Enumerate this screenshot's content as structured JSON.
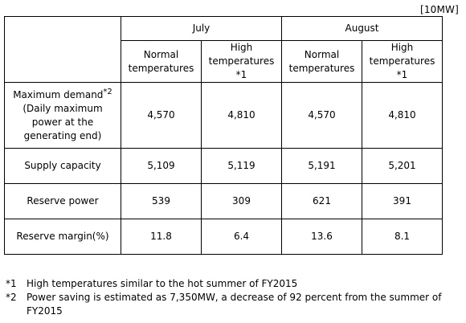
{
  "unit": "[10MW]",
  "months": [
    "July",
    "August"
  ],
  "conditions": [
    [
      "Normal",
      "temperatures"
    ],
    [
      "High",
      "temperatures",
      "*1"
    ],
    [
      "Normal",
      "temperatures"
    ],
    [
      "High",
      "temperatures",
      "*1"
    ]
  ],
  "rows": [
    {
      "label_lines": [
        "Maximum demand",
        "(Daily maximum",
        "power at the",
        "generating  end)"
      ],
      "label_sup": "*2",
      "values": [
        "4,570",
        "4,810",
        "4,570",
        "4,810"
      ]
    },
    {
      "label_lines": [
        "Supply capacity"
      ],
      "values": [
        "5,109",
        "5,119",
        "5,191",
        "5,201"
      ]
    },
    {
      "label_lines": [
        "Reserve power"
      ],
      "values": [
        "539",
        "309",
        "621",
        "391"
      ]
    },
    {
      "label_lines": [
        "Reserve margin(%)"
      ],
      "values": [
        "11.8",
        "6.4",
        "13.6",
        "8.1"
      ]
    }
  ],
  "notes": [
    {
      "mark": "*1",
      "text": "High temperatures  similar  to the hot summer  of FY2015"
    },
    {
      "mark": "*2",
      "text": "Power saving is estimated as 7,350MW, a decrease of 92 percent from the summer of FY2015"
    }
  ]
}
